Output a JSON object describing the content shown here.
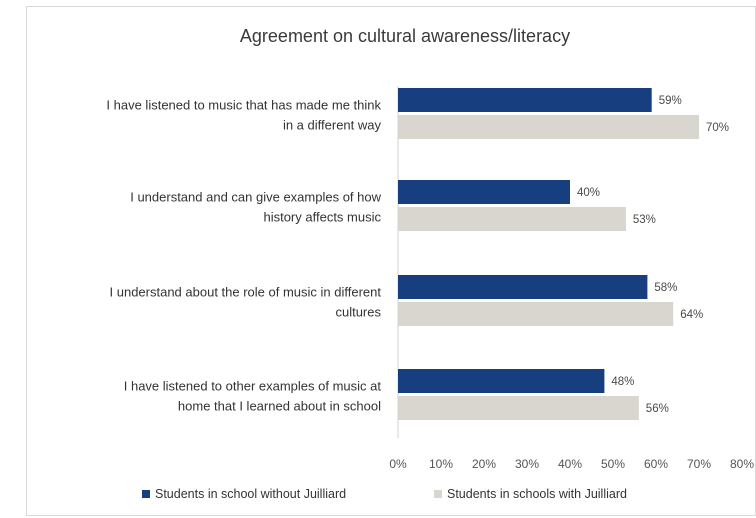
{
  "chart_data": {
    "type": "bar",
    "orientation": "horizontal",
    "title": "Agreement on cultural awareness/literacy",
    "categories": [
      [
        "I have listened to music that has made me think",
        "in a different way"
      ],
      [
        "I understand and can give examples of how",
        "history affects music"
      ],
      [
        "I understand about the role of music in different",
        "cultures"
      ],
      [
        "I have listened to other examples of music at",
        "home that I learned about in school"
      ]
    ],
    "series": [
      {
        "name": "Students in school without Juilliard",
        "color": "#173f7f",
        "values": [
          59,
          40,
          58,
          48
        ],
        "labels": [
          "59%",
          "40%",
          "58%",
          "48%"
        ]
      },
      {
        "name": "Students in schools with Juilliard",
        "color": "#d9d5cf",
        "values": [
          70,
          53,
          64,
          56
        ],
        "labels": [
          "70%",
          "53%",
          "64%",
          "56%"
        ]
      }
    ],
    "xlim": [
      0,
      80
    ],
    "xticks": [
      "0%",
      "10%",
      "20%",
      "30%",
      "40%",
      "50%",
      "60%",
      "70%",
      "80%"
    ],
    "xlabel": "",
    "ylabel": "",
    "grid": false,
    "legend": "bottom"
  }
}
